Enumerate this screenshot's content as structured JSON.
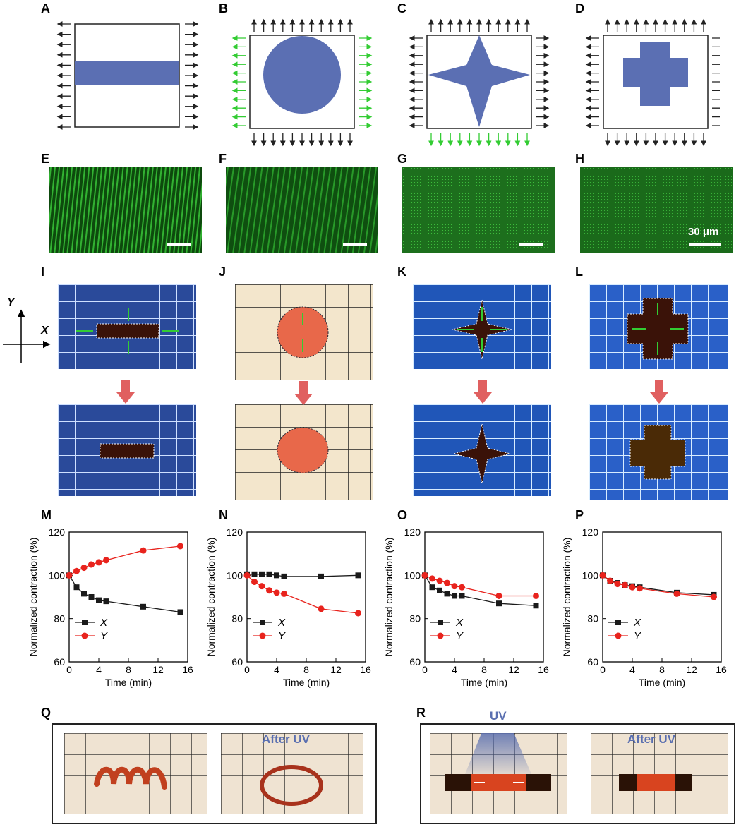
{
  "panel_letters": [
    "A",
    "B",
    "C",
    "D",
    "E",
    "F",
    "G",
    "H",
    "I",
    "J",
    "K",
    "L",
    "M",
    "N",
    "O",
    "P",
    "Q",
    "R"
  ],
  "scale_bar_label": "30 μm",
  "axes_labels": {
    "x": "X",
    "y": "Y"
  },
  "uv_label": "UV",
  "after_uv_label": "After UV",
  "colors": {
    "shape_fill": "#5b6fb3",
    "green_arrow": "#33cc33",
    "red_series": "#e8231d",
    "black_series": "#1a1a1a",
    "grid_blue": "#2a4a9a",
    "grid_paper": "#f3e6cc",
    "sample_red": "#b8401f"
  },
  "chart_data": [
    {
      "id": "M",
      "type": "line",
      "xlabel": "Time (min)",
      "ylabel": "Normalized contraction (%)",
      "xlim": [
        0,
        16
      ],
      "ylim": [
        60,
        120
      ],
      "xticks": [
        0,
        4,
        8,
        12,
        16
      ],
      "yticks": [
        60,
        80,
        100,
        120
      ],
      "series": [
        {
          "name": "X",
          "color": "#1a1a1a",
          "marker": "square",
          "x": [
            0,
            1,
            2,
            3,
            4,
            5,
            10,
            15
          ],
          "y": [
            100,
            94.5,
            91.5,
            90,
            88.5,
            88,
            85.5,
            83
          ]
        },
        {
          "name": "Y",
          "color": "#e8231d",
          "marker": "circle",
          "x": [
            0,
            1,
            2,
            3,
            4,
            5,
            10,
            15
          ],
          "y": [
            100,
            102,
            103.5,
            105,
            106,
            107,
            111.5,
            113.5
          ]
        }
      ]
    },
    {
      "id": "N",
      "type": "line",
      "xlabel": "Time (min)",
      "ylabel": "Normalized contraction (%)",
      "xlim": [
        0,
        16
      ],
      "ylim": [
        60,
        120
      ],
      "xticks": [
        0,
        4,
        8,
        12,
        16
      ],
      "yticks": [
        60,
        80,
        100,
        120
      ],
      "series": [
        {
          "name": "X",
          "color": "#1a1a1a",
          "marker": "square",
          "x": [
            0,
            1,
            2,
            3,
            4,
            5,
            10,
            15
          ],
          "y": [
            100.5,
            100.5,
            100.5,
            100.5,
            100,
            99.5,
            99.5,
            100
          ]
        },
        {
          "name": "Y",
          "color": "#e8231d",
          "marker": "circle",
          "x": [
            0,
            1,
            2,
            3,
            4,
            5,
            10,
            15
          ],
          "y": [
            100,
            97,
            95,
            93,
            92,
            91.5,
            84.5,
            82.5
          ]
        }
      ]
    },
    {
      "id": "O",
      "type": "line",
      "xlabel": "Time (min)",
      "ylabel": "Normalized contraction (%)",
      "xlim": [
        0,
        16
      ],
      "ylim": [
        60,
        120
      ],
      "xticks": [
        0,
        4,
        8,
        12,
        16
      ],
      "yticks": [
        60,
        80,
        100,
        120
      ],
      "series": [
        {
          "name": "X",
          "color": "#1a1a1a",
          "marker": "square",
          "x": [
            0,
            1,
            2,
            3,
            4,
            5,
            10,
            15
          ],
          "y": [
            100,
            94.5,
            93,
            91.5,
            90.5,
            90.5,
            87,
            86
          ]
        },
        {
          "name": "Y",
          "color": "#e8231d",
          "marker": "circle",
          "x": [
            0,
            1,
            2,
            3,
            4,
            5,
            10,
            15
          ],
          "y": [
            100,
            98.5,
            97.5,
            96.5,
            95,
            94.5,
            90.5,
            90.5
          ]
        }
      ]
    },
    {
      "id": "P",
      "type": "line",
      "xlabel": "Time (min)",
      "ylabel": "Normalized contraction (%)",
      "xlim": [
        0,
        16
      ],
      "ylim": [
        60,
        120
      ],
      "xticks": [
        0,
        4,
        8,
        12,
        16
      ],
      "yticks": [
        60,
        80,
        100,
        120
      ],
      "series": [
        {
          "name": "X",
          "color": "#1a1a1a",
          "marker": "square",
          "x": [
            0,
            1,
            2,
            3,
            4,
            5,
            10,
            15
          ],
          "y": [
            100,
            97.5,
            96.5,
            95.5,
            95,
            94.5,
            92,
            91
          ]
        },
        {
          "name": "Y",
          "color": "#e8231d",
          "marker": "circle",
          "x": [
            0,
            1,
            2,
            3,
            4,
            5,
            10,
            15
          ],
          "y": [
            100,
            97.5,
            96,
            95.5,
            94.5,
            94,
            91.5,
            90
          ]
        }
      ]
    }
  ]
}
